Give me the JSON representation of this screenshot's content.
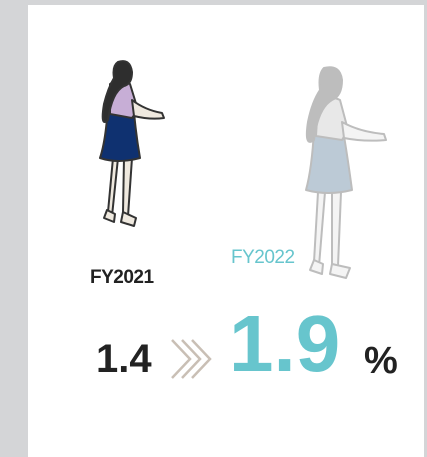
{
  "fy2021": {
    "label": "FY2021",
    "value": 1.4
  },
  "fy2022": {
    "label": "FY2022",
    "value": 1.9
  },
  "unit": "%"
}
